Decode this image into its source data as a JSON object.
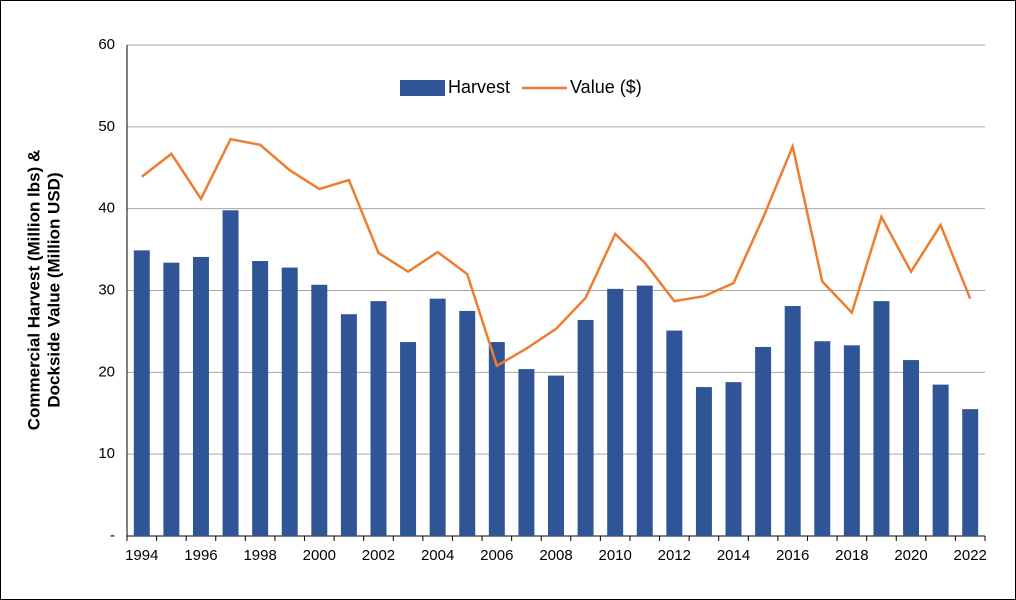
{
  "chart_data": {
    "type": "bar_line",
    "y_label": [
      "Commercial Harvest (Million lbs) &",
      "Dockside Value (Million USD)"
    ],
    "categories": [
      "1994",
      null,
      "1996",
      null,
      "1998",
      null,
      "2000",
      null,
      "2002",
      null,
      "2004",
      null,
      "2006",
      null,
      "2008",
      null,
      "2010",
      null,
      "2012",
      null,
      "2014",
      null,
      "2016",
      null,
      "2018",
      null,
      "2020",
      null,
      "2022"
    ],
    "series": [
      {
        "name": "Harvest",
        "type": "bar",
        "color": "#2f5597",
        "values": [
          34.9,
          33.4,
          34.1,
          39.8,
          33.6,
          32.8,
          30.7,
          27.1,
          28.7,
          23.7,
          29.0,
          27.5,
          23.7,
          20.4,
          19.6,
          26.4,
          30.2,
          30.6,
          25.1,
          18.2,
          18.8,
          23.1,
          28.1,
          23.8,
          23.3,
          28.7,
          21.5,
          18.5,
          15.5
        ]
      },
      {
        "name": "Value ($)",
        "type": "line",
        "color": "#ed7d31",
        "values": [
          43.9,
          46.7,
          41.2,
          48.5,
          47.8,
          44.7,
          42.4,
          43.5,
          34.6,
          32.3,
          34.7,
          32.0,
          20.8,
          22.9,
          25.3,
          29.1,
          36.9,
          33.4,
          28.7,
          29.3,
          30.9,
          38.9,
          47.6,
          31.1,
          27.3,
          39.0,
          32.3,
          38.0,
          29.0
        ]
      }
    ],
    "ylim": [
      0,
      60
    ],
    "yticks": [
      {
        "value": 0,
        "label": "-"
      },
      10,
      20,
      30,
      40,
      50,
      60
    ],
    "grid": true,
    "legend": "top"
  }
}
